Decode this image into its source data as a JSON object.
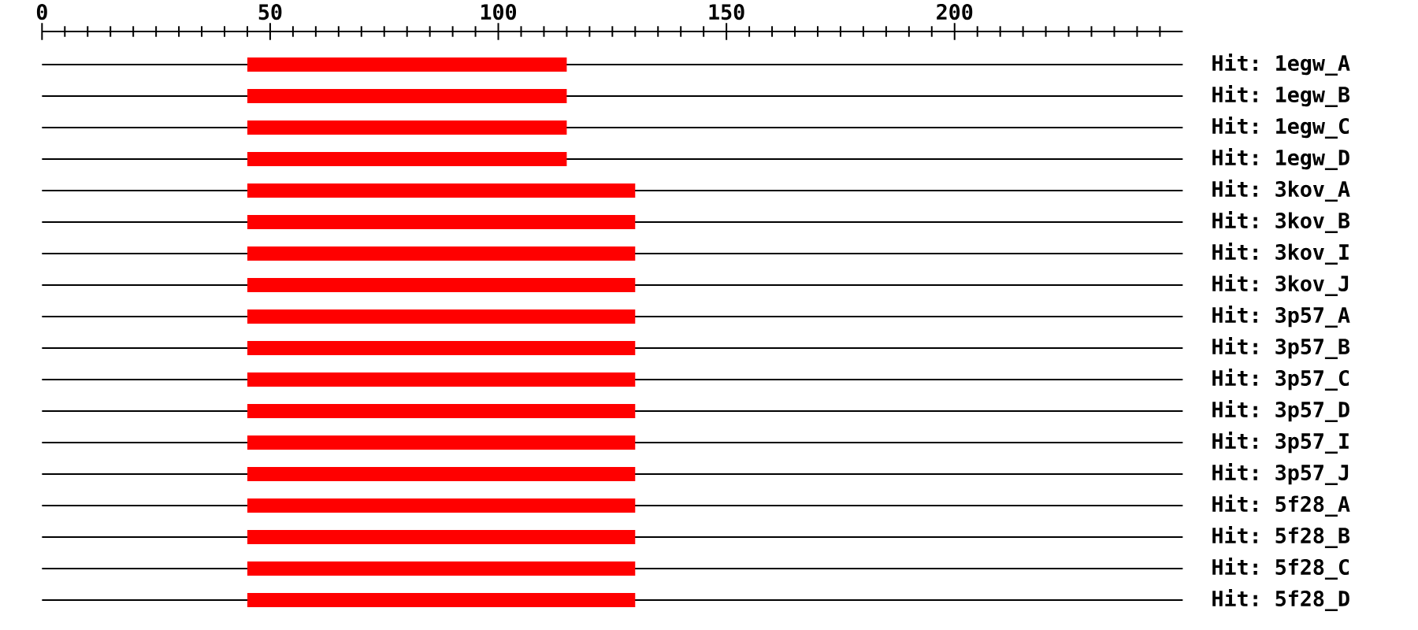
{
  "chart_data": {
    "type": "bar",
    "orientation": "horizontal",
    "categories": [
      "Hit: 1egw_A",
      "Hit: 1egw_B",
      "Hit: 1egw_C",
      "Hit: 1egw_D",
      "Hit: 3kov_A",
      "Hit: 3kov_B",
      "Hit: 3kov_I",
      "Hit: 3kov_J",
      "Hit: 3p57_A",
      "Hit: 3p57_B",
      "Hit: 3p57_C",
      "Hit: 3p57_D",
      "Hit: 3p57_I",
      "Hit: 3p57_J",
      "Hit: 5f28_A",
      "Hit: 5f28_B",
      "Hit: 5f28_C",
      "Hit: 5f28_D"
    ],
    "base": [
      45,
      45,
      45,
      45,
      45,
      45,
      45,
      45,
      45,
      45,
      45,
      45,
      45,
      45,
      45,
      45,
      45,
      45
    ],
    "values": [
      70,
      70,
      70,
      70,
      85,
      85,
      85,
      85,
      85,
      85,
      85,
      85,
      85,
      85,
      85,
      85,
      85,
      85
    ],
    "color": "#ff0000",
    "xlim": [
      0,
      250
    ],
    "xticks": [
      0,
      {
        "value": 5,
        "label": null
      },
      {
        "value": 10,
        "label": null
      },
      {
        "value": 15,
        "label": null
      },
      {
        "value": 20,
        "label": null
      },
      {
        "value": 25,
        "label": null
      },
      {
        "value": 30,
        "label": null
      },
      {
        "value": 35,
        "label": null
      },
      {
        "value": 40,
        "label": null
      },
      {
        "value": 45,
        "label": null
      },
      50,
      {
        "value": 55,
        "label": null
      },
      {
        "value": 60,
        "label": null
      },
      {
        "value": 65,
        "label": null
      },
      {
        "value": 70,
        "label": null
      },
      {
        "value": 75,
        "label": null
      },
      {
        "value": 80,
        "label": null
      },
      {
        "value": 85,
        "label": null
      },
      {
        "value": 90,
        "label": null
      },
      {
        "value": 95,
        "label": null
      },
      100,
      {
        "value": 105,
        "label": null
      },
      {
        "value": 110,
        "label": null
      },
      {
        "value": 115,
        "label": null
      },
      {
        "value": 120,
        "label": null
      },
      {
        "value": 125,
        "label": null
      },
      {
        "value": 130,
        "label": null
      },
      {
        "value": 135,
        "label": null
      },
      {
        "value": 140,
        "label": null
      },
      {
        "value": 145,
        "label": null
      },
      150,
      {
        "value": 155,
        "label": null
      },
      {
        "value": 160,
        "label": null
      },
      {
        "value": 165,
        "label": null
      },
      {
        "value": 170,
        "label": null
      },
      {
        "value": 175,
        "label": null
      },
      {
        "value": 180,
        "label": null
      },
      {
        "value": 185,
        "label": null
      },
      {
        "value": 190,
        "label": null
      },
      {
        "value": 195,
        "label": null
      },
      200,
      {
        "value": 205,
        "label": null
      },
      {
        "value": 210,
        "label": null
      },
      {
        "value": 215,
        "label": null
      },
      {
        "value": 220,
        "label": null
      },
      {
        "value": 225,
        "label": null
      },
      {
        "value": 230,
        "label": null
      },
      {
        "value": 235,
        "label": null
      },
      {
        "value": 240,
        "label": null
      },
      {
        "value": 245,
        "label": null
      }
    ],
    "grid": "y"
  }
}
